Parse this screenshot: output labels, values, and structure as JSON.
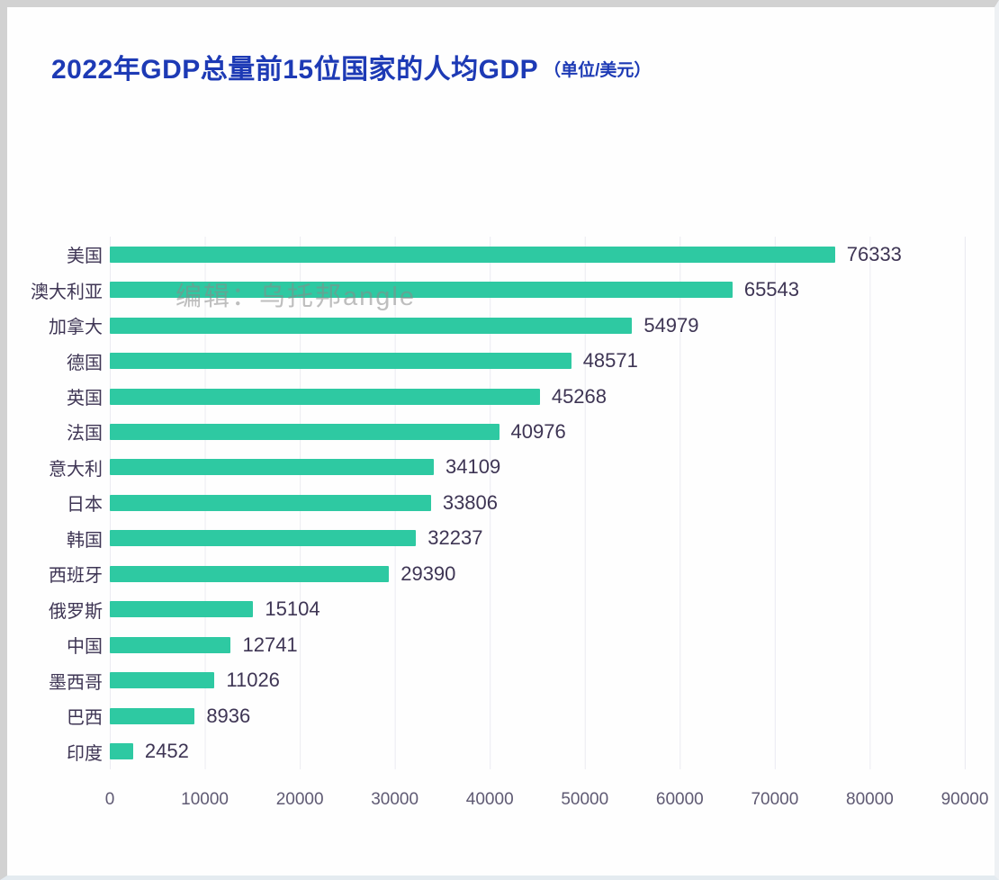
{
  "title": {
    "text": "2022年GDP总量前15位国家的人均GDP",
    "unit_suffix": "（单位/美元）"
  },
  "watermark": "编辑：乌托邦angle",
  "chart_data": {
    "type": "bar",
    "orientation": "horizontal",
    "title": "2022年GDP总量前15位国家的人均GDP（单位/美元）",
    "categories": [
      "美国",
      "澳大利亚",
      "加拿大",
      "德国",
      "英国",
      "法国",
      "意大利",
      "日本",
      "韩国",
      "西班牙",
      "俄罗斯",
      "中国",
      "墨西哥",
      "巴西",
      "印度"
    ],
    "values": [
      76333,
      65543,
      54979,
      48571,
      45268,
      40976,
      34109,
      33806,
      32237,
      29390,
      15104,
      12741,
      11026,
      8936,
      2452
    ],
    "value_labels_shown": true,
    "xlabel": "",
    "ylabel": "",
    "xlim": [
      0,
      90000
    ],
    "x_ticks": [
      0,
      10000,
      20000,
      30000,
      40000,
      50000,
      60000,
      70000,
      80000,
      90000
    ],
    "grid": "faint vertical gridlines at each x tick",
    "legend": "none"
  },
  "colors": {
    "bar": "#2ec9a2",
    "title_text": "#1d3ab5",
    "category_text": "#3e3554",
    "value_text": "#3e3554",
    "tick_text": "#5f5a73",
    "gridline": "#ebebf1",
    "watermark_text": "#8a8a8a",
    "frame": "#d2d2d2",
    "background": "#fefefe"
  }
}
